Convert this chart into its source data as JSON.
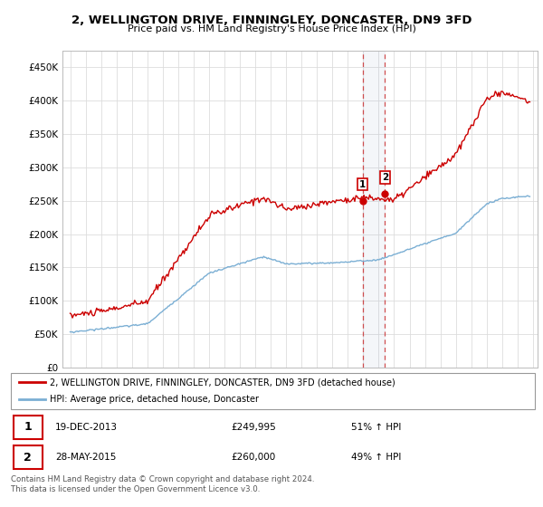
{
  "title": "2, WELLINGTON DRIVE, FINNINGLEY, DONCASTER, DN9 3FD",
  "subtitle": "Price paid vs. HM Land Registry's House Price Index (HPI)",
  "bg_color": "#ffffff",
  "grid_color": "#dddddd",
  "red_color": "#cc0000",
  "blue_color": "#7bafd4",
  "sale1_date": "19-DEC-2013",
  "sale1_price": "£249,995",
  "sale1_hpi": "51% ↑ HPI",
  "sale2_date": "28-MAY-2015",
  "sale2_price": "£260,000",
  "sale2_hpi": "49% ↑ HPI",
  "legend_label1": "2, WELLINGTON DRIVE, FINNINGLEY, DONCASTER, DN9 3FD (detached house)",
  "legend_label2": "HPI: Average price, detached house, Doncaster",
  "footer": "Contains HM Land Registry data © Crown copyright and database right 2024.\nThis data is licensed under the Open Government Licence v3.0.",
  "ylim": [
    0,
    475000
  ],
  "yticks": [
    0,
    50000,
    100000,
    150000,
    200000,
    250000,
    300000,
    350000,
    400000,
    450000
  ],
  "ytick_labels": [
    "£0",
    "£50K",
    "£100K",
    "£150K",
    "£200K",
    "£250K",
    "£300K",
    "£350K",
    "£400K",
    "£450K"
  ],
  "sale1_x": 2013.97,
  "sale2_x": 2015.41,
  "sale1_y": 249995,
  "sale2_y": 260000,
  "xmin": 1994.5,
  "xmax": 2025.3
}
